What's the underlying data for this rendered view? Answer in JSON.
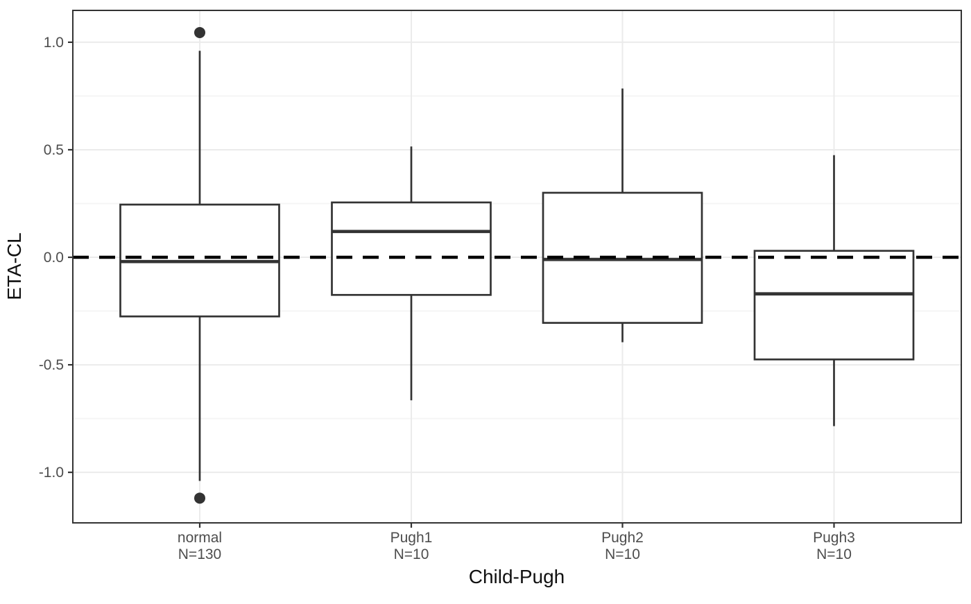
{
  "figure": {
    "background_color": "#ffffff",
    "panel_border_color": "#333333",
    "grid_major_color": "#ebebeb",
    "grid_minor_color": "#f5f5f5",
    "box_stroke_color": "#333333",
    "box_fill_color": "#ffffff",
    "outlier_color": "#333333",
    "reference_line_color": "#000000",
    "tick_color": "#333333",
    "tick_label_color": "#4d4d4d",
    "axis_title_color": "#111111"
  },
  "chart_data": {
    "type": "boxplot",
    "title": "",
    "xlabel": "Child-Pugh",
    "ylabel": "ETA-CL",
    "grid": true,
    "legend": false,
    "ylim": [
      -1.235,
      1.148
    ],
    "yticks": [
      {
        "value": 1.0,
        "label": "1.0"
      },
      {
        "value": 0.5,
        "label": "0.5"
      },
      {
        "value": 0.0,
        "label": "0.0"
      },
      {
        "value": -0.5,
        "label": "-0.5"
      },
      {
        "value": -1.0,
        "label": "-1.0"
      }
    ],
    "minor_yticks": [
      0.75,
      0.25,
      -0.25,
      -0.75
    ],
    "reference_line": {
      "y": 0.0,
      "style": "dashed"
    },
    "categories": [
      "normal",
      "Pugh1",
      "Pugh2",
      "Pugh3"
    ],
    "category_counts": [
      "N=130",
      "N=10",
      "N=10",
      "N=10"
    ],
    "series": [
      {
        "category": "normal",
        "n_label": "N=130",
        "whisker_low": -1.04,
        "q1": -0.275,
        "median": -0.02,
        "q3": 0.245,
        "whisker_high": 0.96,
        "outliers": [
          1.045,
          -1.12
        ]
      },
      {
        "category": "Pugh1",
        "n_label": "N=10",
        "whisker_low": -0.665,
        "q1": -0.175,
        "median": 0.12,
        "q3": 0.255,
        "whisker_high": 0.515,
        "outliers": []
      },
      {
        "category": "Pugh2",
        "n_label": "N=10",
        "whisker_low": -0.395,
        "q1": -0.305,
        "median": -0.01,
        "q3": 0.3,
        "whisker_high": 0.785,
        "outliers": []
      },
      {
        "category": "Pugh3",
        "n_label": "N=10",
        "whisker_low": -0.785,
        "q1": -0.475,
        "median": -0.17,
        "q3": 0.03,
        "whisker_high": 0.475,
        "outliers": []
      }
    ]
  }
}
